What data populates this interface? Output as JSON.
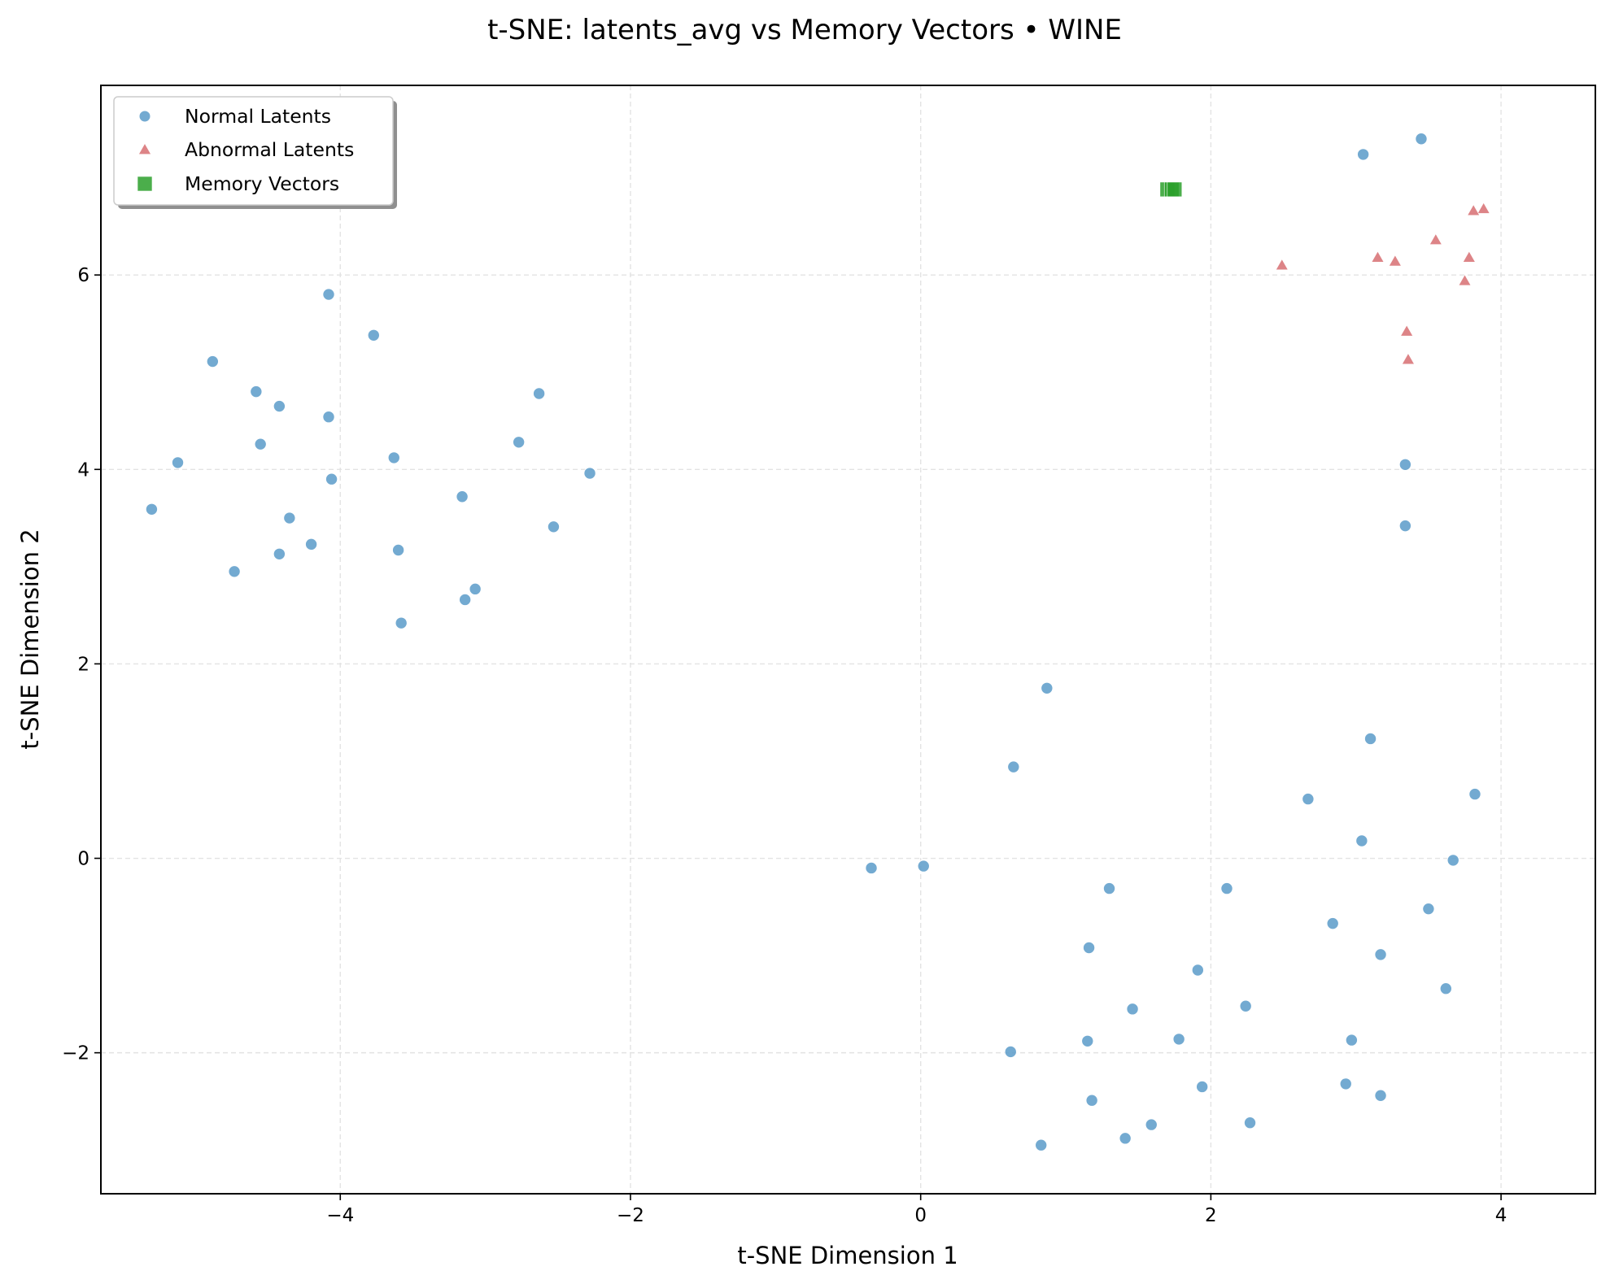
{
  "chart_data": {
    "type": "scatter",
    "title": "t-SNE: latents_avg vs Memory Vectors • WINE",
    "xlabel": "t-SNE Dimension 1",
    "ylabel": "t-SNE Dimension 2",
    "xlim": [
      -5.65,
      4.65
    ],
    "ylim": [
      -3.45,
      7.95
    ],
    "xticks": [
      -4,
      -2,
      0,
      2,
      4
    ],
    "xtick_labels": [
      "−4",
      "−2",
      "0",
      "2",
      "4"
    ],
    "yticks": [
      -2,
      0,
      2,
      4,
      6
    ],
    "ytick_labels": [
      "−2",
      "0",
      "2",
      "4",
      "6"
    ],
    "grid": true,
    "legend_position": "upper-left",
    "series": [
      {
        "name": "Normal Latents",
        "marker": "circle",
        "color": "#5a9bc9",
        "points": [
          [
            -4.08,
            5.8
          ],
          [
            -3.77,
            5.38
          ],
          [
            -4.88,
            5.11
          ],
          [
            -4.58,
            4.8
          ],
          [
            -4.42,
            4.65
          ],
          [
            -4.08,
            4.54
          ],
          [
            -4.55,
            4.26
          ],
          [
            -5.12,
            4.07
          ],
          [
            -3.63,
            4.12
          ],
          [
            -4.06,
            3.9
          ],
          [
            -2.63,
            4.78
          ],
          [
            -2.77,
            4.28
          ],
          [
            -2.28,
            3.96
          ],
          [
            -3.16,
            3.72
          ],
          [
            -5.3,
            3.59
          ],
          [
            -4.35,
            3.5
          ],
          [
            -4.2,
            3.23
          ],
          [
            -4.42,
            3.13
          ],
          [
            -3.6,
            3.17
          ],
          [
            -2.53,
            3.41
          ],
          [
            -4.73,
            2.95
          ],
          [
            -3.07,
            2.77
          ],
          [
            -3.14,
            2.66
          ],
          [
            -3.58,
            2.42
          ],
          [
            3.05,
            7.24
          ],
          [
            3.45,
            7.4
          ],
          [
            3.34,
            4.05
          ],
          [
            3.34,
            3.42
          ],
          [
            0.87,
            1.75
          ],
          [
            0.64,
            0.94
          ],
          [
            3.1,
            1.23
          ],
          [
            2.67,
            0.61
          ],
          [
            3.82,
            0.66
          ],
          [
            3.04,
            0.18
          ],
          [
            3.67,
            -0.02
          ],
          [
            -0.34,
            -0.1
          ],
          [
            0.02,
            -0.08
          ],
          [
            1.3,
            -0.31
          ],
          [
            2.11,
            -0.31
          ],
          [
            2.84,
            -0.67
          ],
          [
            3.5,
            -0.52
          ],
          [
            1.16,
            -0.92
          ],
          [
            3.17,
            -0.99
          ],
          [
            1.91,
            -1.15
          ],
          [
            3.62,
            -1.34
          ],
          [
            1.46,
            -1.55
          ],
          [
            2.24,
            -1.52
          ],
          [
            0.62,
            -1.99
          ],
          [
            1.15,
            -1.88
          ],
          [
            1.78,
            -1.86
          ],
          [
            2.97,
            -1.87
          ],
          [
            1.94,
            -2.35
          ],
          [
            2.93,
            -2.32
          ],
          [
            3.17,
            -2.44
          ],
          [
            1.18,
            -2.49
          ],
          [
            0.83,
            -2.95
          ],
          [
            1.41,
            -2.88
          ],
          [
            1.59,
            -2.74
          ],
          [
            2.27,
            -2.72
          ]
        ]
      },
      {
        "name": "Abnormal Latents",
        "marker": "triangle",
        "color": "#d9777a",
        "points": [
          [
            3.88,
            6.68
          ],
          [
            3.81,
            6.66
          ],
          [
            3.55,
            6.36
          ],
          [
            3.15,
            6.18
          ],
          [
            3.78,
            6.18
          ],
          [
            3.27,
            6.14
          ],
          [
            2.49,
            6.1
          ],
          [
            3.75,
            5.94
          ],
          [
            3.35,
            5.42
          ],
          [
            3.36,
            5.13
          ]
        ]
      },
      {
        "name": "Memory Vectors",
        "marker": "square",
        "color": "#2ca02c",
        "points": [
          [
            1.7,
            6.88
          ],
          [
            1.73,
            6.88
          ],
          [
            1.75,
            6.88
          ]
        ]
      }
    ]
  }
}
